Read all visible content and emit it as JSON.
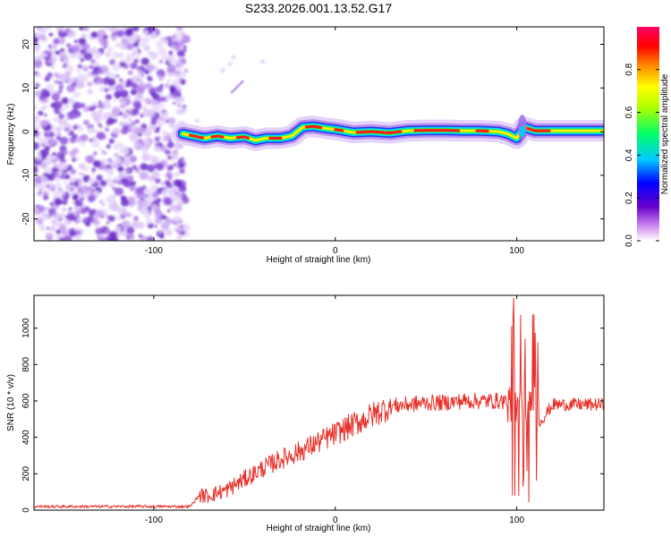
{
  "chart_data": [
    {
      "type": "heatmap",
      "title": "S233.2026.001.13.52.G17",
      "xlabel": "Height of straight line (km)",
      "ylabel": "Frequency (Hz)",
      "xlim": [
        -166,
        148
      ],
      "ylim": [
        -25,
        24
      ],
      "xticks": [
        -100,
        0,
        100
      ],
      "yticks": [
        -20,
        -10,
        0,
        10,
        20
      ],
      "colorbar": {
        "label": "Normalized spectral amplitude",
        "range": [
          0,
          1
        ],
        "ticks": [
          0.0,
          0.2,
          0.4,
          0.6,
          0.8
        ],
        "tick_labels": [
          "0.0",
          "0.2",
          "0.4",
          "0.6",
          "0.8"
        ],
        "colors": [
          "#ffffff",
          "#cc88ee",
          "#6600cc",
          "#0000ff",
          "#00ffff",
          "#00ff00",
          "#ffff00",
          "#ff8800",
          "#ff0000",
          "#ff0066"
        ]
      },
      "noise_region": {
        "x_range": [
          -166,
          -82
        ],
        "freq_range": [
          -25,
          24
        ]
      },
      "ridge": {
        "x": [
          -84,
          -78,
          -72,
          -65,
          -58,
          -50,
          -44,
          -38,
          -30,
          -24,
          -18,
          -12,
          -6,
          0,
          10,
          20,
          30,
          40,
          50,
          60,
          70,
          80,
          90,
          95,
          100,
          104,
          110,
          120,
          130,
          148
        ],
        "freq": [
          -0.5,
          -1.0,
          -1.5,
          -1.0,
          -1.5,
          -1.2,
          -2.0,
          -1.5,
          -1.5,
          -1.0,
          1.0,
          1.2,
          0.8,
          0.5,
          -0.2,
          0.0,
          -0.3,
          0.2,
          0.3,
          0.3,
          0.2,
          0.2,
          0.0,
          -0.5,
          -1.5,
          1.0,
          0.2,
          0.2,
          0.2,
          0.2
        ]
      }
    },
    {
      "type": "line",
      "xlabel": "Height of straight line (km)",
      "ylabel": "SNR (10 * v/v)",
      "xlim": [
        -166,
        148
      ],
      "ylim": [
        0,
        1180
      ],
      "xticks": [
        -100,
        0,
        100
      ],
      "yticks": [
        0,
        200,
        400,
        600,
        800,
        1000
      ],
      "series": [
        {
          "name": "SNR",
          "color": "#e8302a",
          "x": [
            -166,
            -140,
            -110,
            -80,
            -75,
            -70,
            -60,
            -50,
            -40,
            -30,
            -20,
            -10,
            0,
            10,
            20,
            30,
            40,
            50,
            60,
            70,
            80,
            88,
            96,
            100,
            102,
            104,
            106,
            108,
            110,
            120,
            130,
            140,
            148
          ],
          "values": [
            20,
            20,
            20,
            20,
            80,
            80,
            110,
            170,
            230,
            280,
            320,
            370,
            420,
            470,
            520,
            570,
            580,
            590,
            590,
            600,
            600,
            600,
            600,
            640,
            300,
            1050,
            100,
            1070,
            450,
            580,
            580,
            580,
            580
          ]
        }
      ]
    }
  ]
}
